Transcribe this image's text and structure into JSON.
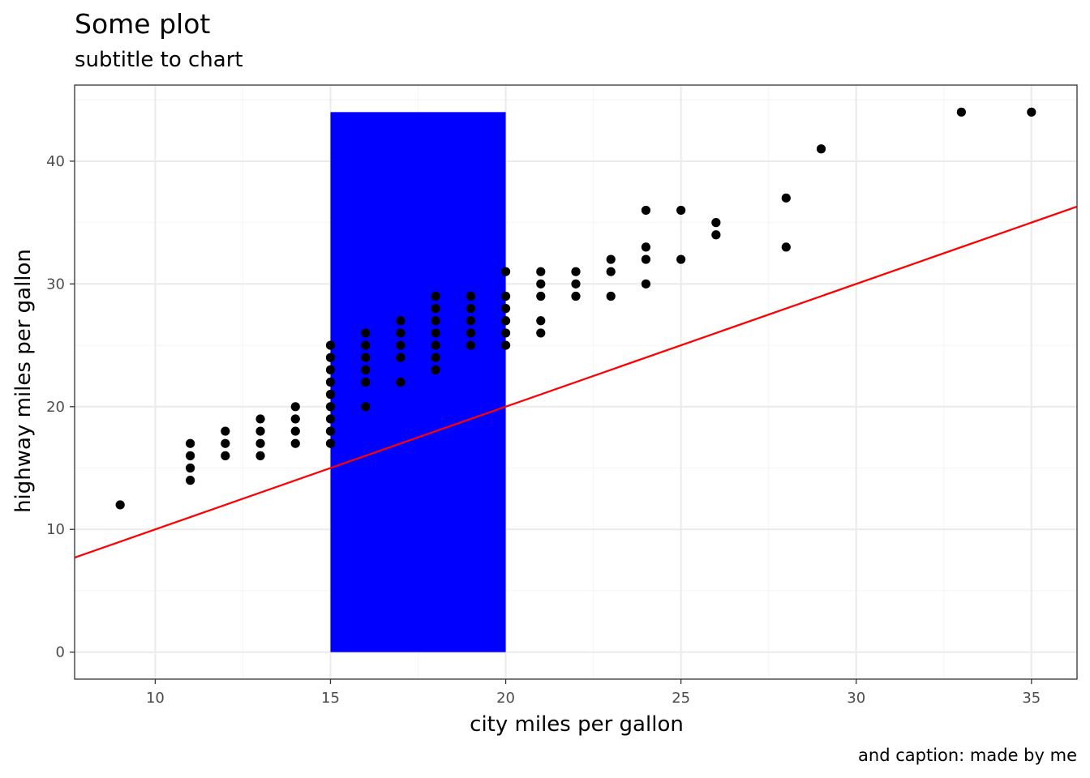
{
  "chart_data": {
    "type": "scatter",
    "title": "Some plot",
    "subtitle": "subtitle to chart",
    "caption": "and caption: made by me",
    "xlabel": "city miles per gallon",
    "ylabel": "highway miles per gallon",
    "xlim": [
      7.7,
      36.3
    ],
    "ylim": [
      -2.2,
      46.2
    ],
    "x_ticks": [
      10,
      15,
      20,
      25,
      30,
      35
    ],
    "y_ticks": [
      0,
      10,
      20,
      30,
      40
    ],
    "x_tick_labels": [
      "10",
      "15",
      "20",
      "25",
      "30",
      "35"
    ],
    "y_tick_labels": [
      "0",
      "10",
      "20",
      "30",
      "40"
    ],
    "grid": true,
    "theme": "bw",
    "colors": {
      "points": "#000000",
      "rect": "#0000ff",
      "line": "#ff0000",
      "grid_major": "#ebebeb",
      "grid_minor": "#f5f5f5",
      "panel_border": "#333333",
      "tick_label": "#4d4d4d"
    },
    "rect_annotation": {
      "xmin": 15,
      "xmax": 20,
      "ymin": 0,
      "ymax": 44,
      "color": "#0000ff"
    },
    "reference_line": {
      "intercept": 0,
      "slope": 1,
      "color": "#ff0000"
    },
    "points": [
      [
        9,
        12
      ],
      [
        11,
        14
      ],
      [
        11,
        15
      ],
      [
        11,
        16
      ],
      [
        11,
        17
      ],
      [
        12,
        16
      ],
      [
        12,
        17
      ],
      [
        12,
        18
      ],
      [
        13,
        16
      ],
      [
        13,
        17
      ],
      [
        13,
        18
      ],
      [
        13,
        19
      ],
      [
        14,
        17
      ],
      [
        14,
        18
      ],
      [
        14,
        19
      ],
      [
        14,
        20
      ],
      [
        15,
        17
      ],
      [
        15,
        18
      ],
      [
        15,
        19
      ],
      [
        15,
        20
      ],
      [
        15,
        21
      ],
      [
        15,
        22
      ],
      [
        15,
        23
      ],
      [
        15,
        24
      ],
      [
        15,
        25
      ],
      [
        16,
        20
      ],
      [
        16,
        22
      ],
      [
        16,
        23
      ],
      [
        16,
        24
      ],
      [
        16,
        25
      ],
      [
        16,
        26
      ],
      [
        17,
        22
      ],
      [
        17,
        24
      ],
      [
        17,
        25
      ],
      [
        17,
        26
      ],
      [
        17,
        27
      ],
      [
        18,
        23
      ],
      [
        18,
        24
      ],
      [
        18,
        25
      ],
      [
        18,
        26
      ],
      [
        18,
        27
      ],
      [
        18,
        28
      ],
      [
        18,
        29
      ],
      [
        19,
        25
      ],
      [
        19,
        26
      ],
      [
        19,
        27
      ],
      [
        19,
        28
      ],
      [
        19,
        29
      ],
      [
        20,
        25
      ],
      [
        20,
        26
      ],
      [
        20,
        27
      ],
      [
        20,
        28
      ],
      [
        20,
        29
      ],
      [
        20,
        31
      ],
      [
        21,
        26
      ],
      [
        21,
        27
      ],
      [
        21,
        29
      ],
      [
        21,
        30
      ],
      [
        21,
        31
      ],
      [
        22,
        29
      ],
      [
        22,
        30
      ],
      [
        22,
        31
      ],
      [
        23,
        29
      ],
      [
        23,
        31
      ],
      [
        23,
        32
      ],
      [
        24,
        30
      ],
      [
        24,
        32
      ],
      [
        24,
        33
      ],
      [
        24,
        36
      ],
      [
        25,
        32
      ],
      [
        25,
        36
      ],
      [
        26,
        34
      ],
      [
        26,
        35
      ],
      [
        28,
        33
      ],
      [
        28,
        37
      ],
      [
        29,
        41
      ],
      [
        33,
        44
      ],
      [
        35,
        44
      ]
    ]
  }
}
